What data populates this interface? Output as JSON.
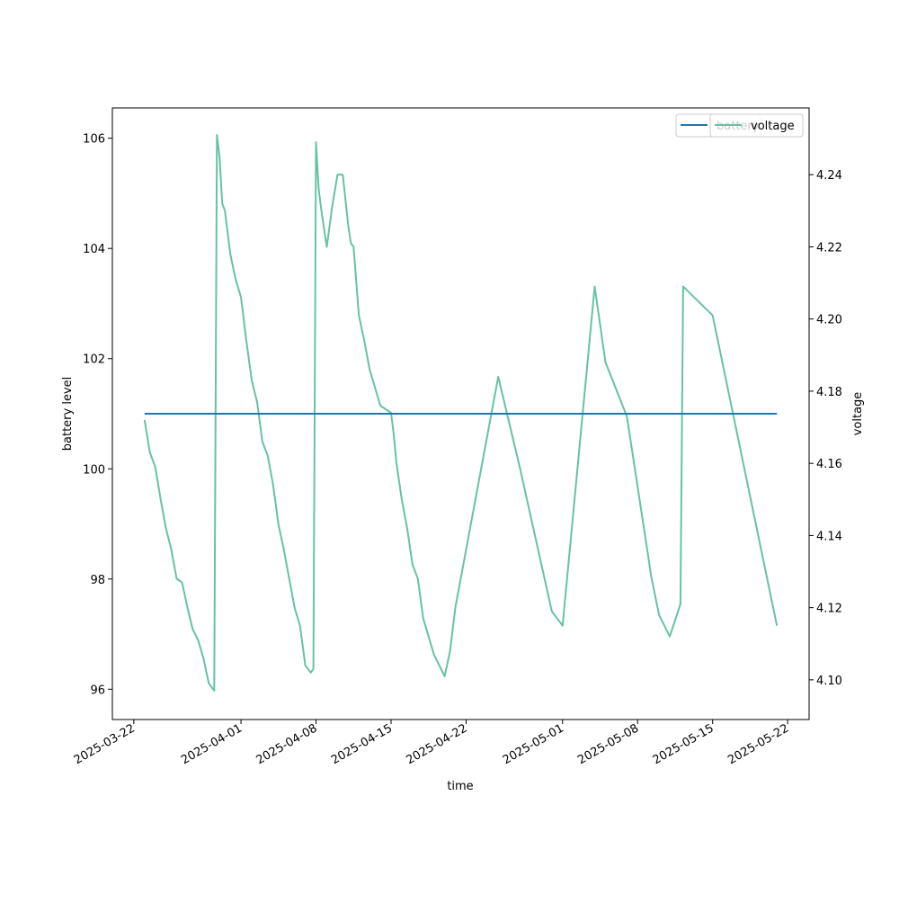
{
  "chart_data": {
    "type": "line",
    "xlabel": "time",
    "ylabel_left": "battery level",
    "ylabel_right": "voltage",
    "x_ticks": [
      "2025-03-22",
      "2025-04-01",
      "2025-04-08",
      "2025-04-15",
      "2025-04-22",
      "2025-05-01",
      "2025-05-08",
      "2025-05-15",
      "2025-05-22"
    ],
    "y_left_ticks": [
      "96",
      "98",
      "100",
      "102",
      "104",
      "106"
    ],
    "y_right_ticks": [
      "4.10",
      "4.12",
      "4.14",
      "4.16",
      "4.18",
      "4.20",
      "4.22",
      "4.24"
    ],
    "xlim": [
      "2025-03-20",
      "2025-05-24"
    ],
    "ylim_left": [
      95.45,
      106.55
    ],
    "ylim_right": [
      4.089,
      4.2585
    ],
    "legend_position": "top-right",
    "series": [
      {
        "name": "battery",
        "axis": "left",
        "color": "#1f77b4",
        "x": [
          "2025-03-23",
          "2025-05-21"
        ],
        "y": [
          101,
          101
        ]
      },
      {
        "name": "voltage",
        "axis": "right",
        "color": "#66c2a5",
        "x": [
          "2025-03-23",
          "2025-03-23 12:00",
          "2025-03-24",
          "2025-03-24 12:00",
          "2025-03-25",
          "2025-03-25 12:00",
          "2025-03-26",
          "2025-03-26 12:00",
          "2025-03-27",
          "2025-03-27 12:00",
          "2025-03-28",
          "2025-03-28 12:00",
          "2025-03-29",
          "2025-03-29 12:00",
          "2025-03-29 18:00",
          "2025-03-30",
          "2025-03-30 06:00",
          "2025-03-30 12:00",
          "2025-03-31",
          "2025-03-31 12:00",
          "2025-04-01",
          "2025-04-01 12:00",
          "2025-04-02",
          "2025-04-02 12:00",
          "2025-04-03",
          "2025-04-03 12:00",
          "2025-04-04",
          "2025-04-04 12:00",
          "2025-04-05",
          "2025-04-05 12:00",
          "2025-04-06",
          "2025-04-06 12:00",
          "2025-04-07",
          "2025-04-07 12:00",
          "2025-04-07 18:00",
          "2025-04-08",
          "2025-04-08 06:00",
          "2025-04-08 12:00",
          "2025-04-09",
          "2025-04-09 12:00",
          "2025-04-10",
          "2025-04-10 12:00",
          "2025-04-11",
          "2025-04-11 06:00",
          "2025-04-11 12:00",
          "2025-04-12",
          "2025-04-12 12:00",
          "2025-04-13",
          "2025-04-14",
          "2025-04-15",
          "2025-04-15 06:00",
          "2025-04-15 12:00",
          "2025-04-16",
          "2025-04-16 12:00",
          "2025-04-17",
          "2025-04-17 12:00",
          "2025-04-18",
          "2025-04-19",
          "2025-04-20",
          "2025-04-20 12:00",
          "2025-04-21",
          "2025-04-25",
          "2025-04-27",
          "2025-04-30",
          "2025-05-01",
          "2025-05-04",
          "2025-05-05",
          "2025-05-07",
          "2025-05-09",
          "2025-05-09 06:00",
          "2025-05-10",
          "2025-05-11",
          "2025-05-12",
          "2025-05-12 06:00",
          "2025-05-15",
          "2025-05-21"
        ],
        "y": [
          4.172,
          4.163,
          4.159,
          4.15,
          4.142,
          4.136,
          4.128,
          4.127,
          4.12,
          4.114,
          4.111,
          4.106,
          4.099,
          4.097,
          4.251,
          4.245,
          4.232,
          4.23,
          4.218,
          4.211,
          4.206,
          4.194,
          4.183,
          4.177,
          4.166,
          4.162,
          4.154,
          4.143,
          4.136,
          4.128,
          4.12,
          4.115,
          4.104,
          4.102,
          4.103,
          4.249,
          4.236,
          4.23,
          4.22,
          4.231,
          4.24,
          4.24,
          4.226,
          4.221,
          4.22,
          4.201,
          4.194,
          4.186,
          4.176,
          4.174,
          4.168,
          4.16,
          4.15,
          4.142,
          4.132,
          4.128,
          4.117,
          4.107,
          4.101,
          4.108,
          4.12,
          4.184,
          4.159,
          4.119,
          4.115,
          4.209,
          4.188,
          4.173,
          4.134,
          4.129,
          4.118,
          4.112,
          4.121,
          4.209,
          4.201,
          4.115
        ]
      }
    ]
  }
}
